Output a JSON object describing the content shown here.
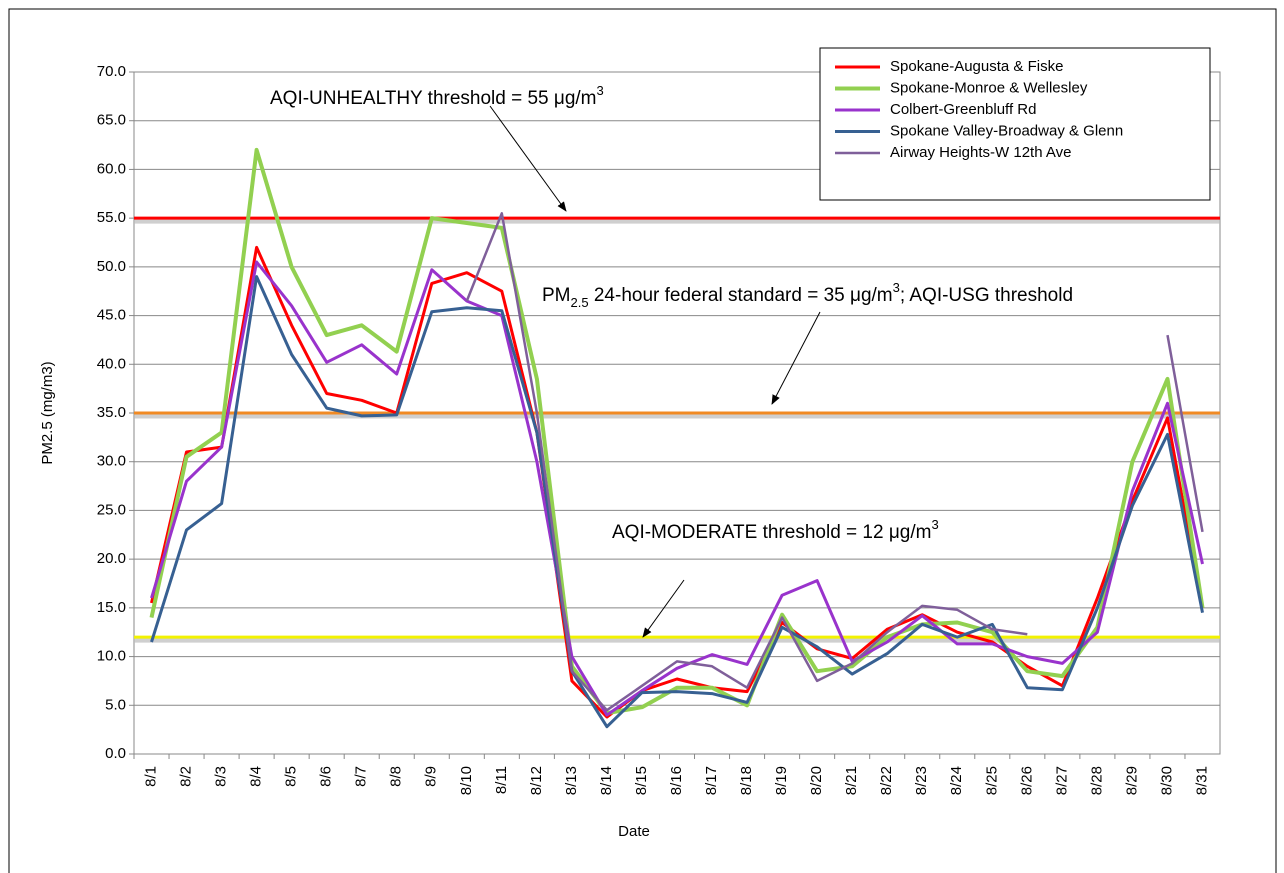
{
  "chart_data": {
    "type": "line",
    "y_label": "PM2.5 (mg/m3)",
    "x_label": "Date",
    "categories": [
      "8/1",
      "8/2",
      "8/3",
      "8/4",
      "8/5",
      "8/6",
      "8/7",
      "8/8",
      "8/9",
      "8/10",
      "8/11",
      "8/12",
      "8/13",
      "8/14",
      "8/15",
      "8/16",
      "8/17",
      "8/18",
      "8/19",
      "8/20",
      "8/21",
      "8/22",
      "8/23",
      "8/24",
      "8/25",
      "8/26",
      "8/27",
      "8/28",
      "8/29",
      "8/30",
      "8/31"
    ],
    "series": [
      {
        "name": "Spokane-Augusta & Fiske",
        "color": "#ff0000",
        "width": 3,
        "values": [
          15.5,
          31,
          31.5,
          52,
          44,
          37,
          36.3,
          35,
          48.3,
          49.4,
          47.5,
          33,
          7.5,
          3.8,
          6.5,
          7.7,
          6.8,
          6.4,
          13.5,
          10.8,
          9.8,
          12.8,
          14.3,
          12.5,
          11.5,
          9,
          7,
          16,
          26,
          34.5,
          15
        ]
      },
      {
        "name": "Spokane-Monroe & Wellesley",
        "color": "#92d050",
        "width": 4,
        "values": [
          14,
          30.5,
          33,
          62,
          50,
          43,
          44,
          41.3,
          55,
          54.5,
          54,
          38.5,
          9,
          4.2,
          4.8,
          6.8,
          6.8,
          5,
          14.3,
          8.5,
          9,
          12,
          13.3,
          13.5,
          12.5,
          8.5,
          8,
          13,
          30,
          38.5,
          15
        ]
      },
      {
        "name": "Colbert-Greenbluff Rd",
        "color": "#9933cc",
        "width": 3,
        "values": [
          16,
          28,
          31.5,
          50.5,
          46,
          40.2,
          42,
          39,
          49.7,
          46.5,
          45,
          30,
          10,
          4,
          6.5,
          8.8,
          10.2,
          9.2,
          16.3,
          17.8,
          9.5,
          11.5,
          14.2,
          11.3,
          11.3,
          10,
          9.3,
          12.5,
          27,
          36,
          19.5
        ]
      },
      {
        "name": "Spokane Valley-Broadway & Glenn",
        "color": "#376092",
        "width": 3,
        "values": [
          11.5,
          23,
          25.7,
          49,
          41,
          35.5,
          34.7,
          34.8,
          45.4,
          45.8,
          45.5,
          33,
          8.5,
          2.8,
          6.3,
          6.4,
          6.2,
          5.3,
          13,
          11,
          8.2,
          10.3,
          13.3,
          12,
          13.3,
          6.8,
          6.6,
          15,
          25.5,
          32.8,
          14.5
        ]
      },
      {
        "name": "Airway Heights-W 12th Ave",
        "color": "#7f5f9a",
        "width": 2.5,
        "values": [
          null,
          null,
          null,
          null,
          null,
          null,
          null,
          null,
          null,
          46.5,
          55.5,
          35,
          8.5,
          4.5,
          7,
          9.5,
          9,
          6.8,
          14,
          7.5,
          9.3,
          12.5,
          15.2,
          14.8,
          12.8,
          12.3,
          null,
          null,
          null,
          43,
          22.8
        ]
      }
    ],
    "ylim": [
      0,
      70
    ],
    "yticks": [
      {
        "value": 0,
        "label": "0.0"
      },
      {
        "value": 5,
        "label": "5.0"
      },
      {
        "value": 10,
        "label": "10.0"
      },
      {
        "value": 15,
        "label": "15.0"
      },
      {
        "value": 20,
        "label": "20.0"
      },
      {
        "value": 25,
        "label": "25.0"
      },
      {
        "value": 30,
        "label": "30.0"
      },
      {
        "value": 35,
        "label": "35.0"
      },
      {
        "value": 40,
        "label": "40.0"
      },
      {
        "value": 45,
        "label": "45.0"
      },
      {
        "value": 50,
        "label": "50.0"
      },
      {
        "value": 55,
        "label": "55.0"
      },
      {
        "value": 60,
        "label": "60.0"
      },
      {
        "value": 65,
        "label": "65.0"
      },
      {
        "value": 70,
        "label": "70.0"
      }
    ],
    "grid": true,
    "legend": "top-right",
    "thresholds": [
      {
        "value": 55,
        "color": "#ff0000"
      },
      {
        "value": 35,
        "color": "#f08a24"
      },
      {
        "value": 12,
        "color": "#f2f200"
      }
    ],
    "annotations": [
      {
        "parts": [
          {
            "text": "AQI-UNHEALTHY  threshold = 55 μg/m"
          },
          {
            "text": "3",
            "shift": "super"
          }
        ]
      },
      {
        "parts": [
          {
            "text": "PM"
          },
          {
            "text": "2.5",
            "shift": "sub"
          },
          {
            "text": " 24-hour federal standard = 35 μg/m"
          },
          {
            "text": "3",
            "shift": "super"
          },
          {
            "text": "; AQI-USG threshold"
          }
        ]
      },
      {
        "parts": [
          {
            "text": "AQI-MODERATE  threshold = 12 μg/m"
          },
          {
            "text": "3",
            "shift": "super"
          }
        ]
      }
    ]
  }
}
